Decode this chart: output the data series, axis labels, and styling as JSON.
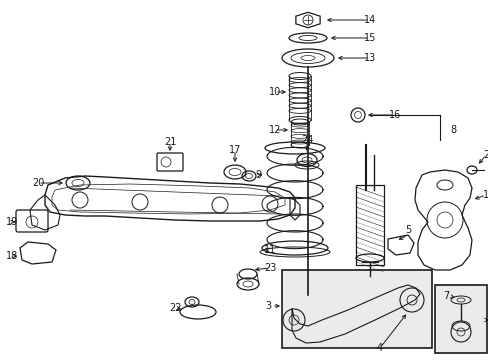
{
  "bg_color": "#ffffff",
  "lc": "#1a1a1a",
  "fig_width": 4.89,
  "fig_height": 3.6,
  "dpi": 100
}
